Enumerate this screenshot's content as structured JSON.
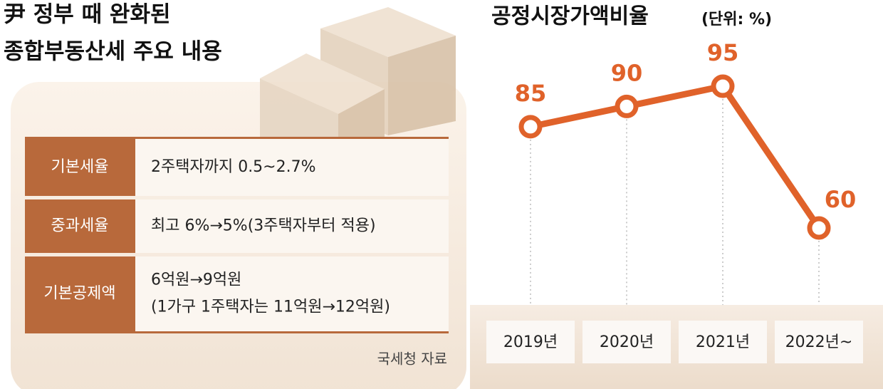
{
  "infobox": {
    "title_lines": [
      "尹 정부 때 완화된",
      "종합부동산세 주요 내용"
    ],
    "rows": [
      {
        "label": "기본세율",
        "lines": [
          "2주택자까지 0.5~2.7%"
        ]
      },
      {
        "label": "중과세율",
        "lines": [
          "최고 6%→5%(3주택자부터 적용)"
        ]
      },
      {
        "label": "기본공제액",
        "lines": [
          "6억원→9억원",
          "(1가구 1주택자는 11억원→12억원)"
        ]
      }
    ],
    "source": "국세청 자료"
  },
  "chart_data": {
    "type": "line",
    "title": "공정시장가액비율",
    "subtitle": "(단위: %)",
    "categories": [
      "2019년",
      "2020년",
      "2021년",
      "2022년~"
    ],
    "values": [
      85,
      90,
      95,
      60
    ],
    "color": "#e0622a"
  }
}
